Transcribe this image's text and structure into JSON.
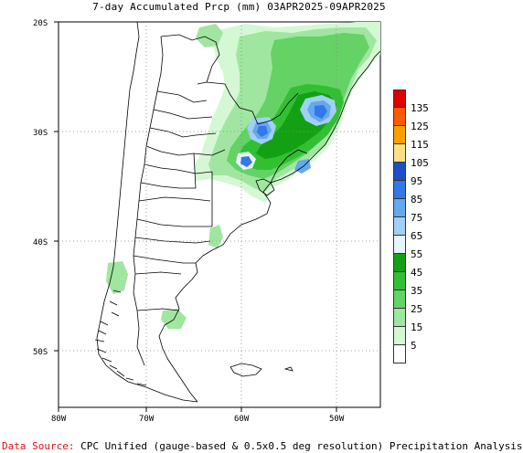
{
  "title": "7-day Accumulated Prcp (mm) 03APR2025-09APR2025",
  "footer": {
    "source_label": "Data Source:",
    "source_text": "CPC Unified (gauge-based & 0.5x0.5 deg resolution) Precipitation Analysis"
  },
  "axes": {
    "y_ticks": [
      "20S",
      "30S",
      "40S",
      "50S"
    ],
    "x_ticks": [
      "80W",
      "70W",
      "60W",
      "50W"
    ]
  },
  "legend": {
    "labels": [
      "135",
      "125",
      "115",
      "105",
      "95",
      "85",
      "75",
      "65",
      "55",
      "45",
      "35",
      "25",
      "15",
      "5"
    ],
    "colors": [
      "#e00000",
      "#ff5a00",
      "#ff9e00",
      "#ffe088",
      "#1e4fc8",
      "#3278e6",
      "#64a8f0",
      "#a0d0f8",
      "#e6f5ff",
      "#14a014",
      "#32c032",
      "#64d264",
      "#a0e6a0",
      "#d4f8d4",
      "#ffffff"
    ]
  },
  "colors": {
    "grid": "#888888",
    "land_outline": "#000000",
    "water": "#ffffff",
    "source_label": "#dd1111"
  }
}
